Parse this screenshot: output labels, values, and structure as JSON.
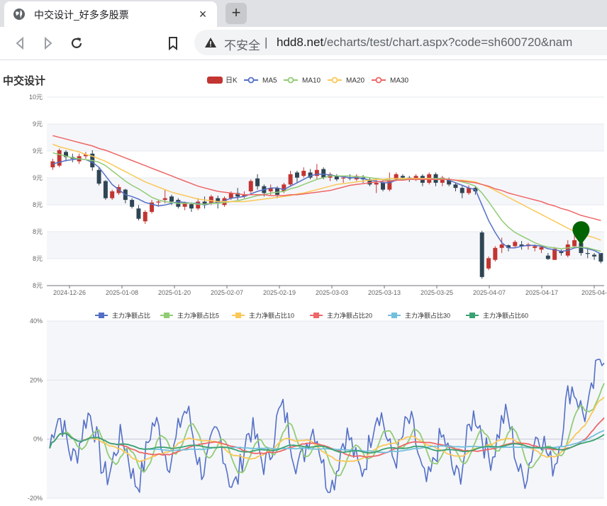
{
  "browser": {
    "tab_title": "中交设计_好多多股票",
    "close_icon": "×",
    "new_tab_icon": "+",
    "insecure_label": "不安全",
    "separator": "|",
    "url_host": "hdd8.net",
    "url_path": "/echarts/test/chart.aspx?code=sh600720&nam"
  },
  "chart_title": "中交设计",
  "chart_data": [
    {
      "type": "candlestick",
      "legend": [
        "日K",
        "MA5",
        "MA10",
        "MA20",
        "MA30"
      ],
      "colors": {
        "up": "#c23531",
        "down": "#2f4554",
        "MA5": "#5470c6",
        "MA10": "#91cc75",
        "MA20": "#fac858",
        "MA30": "#ee6666"
      },
      "y_tick_labels": [
        "10元",
        "9元",
        "9元",
        "9元",
        "8元",
        "8元",
        "8元",
        "8元"
      ],
      "ylim": [
        7.8,
        10.0
      ],
      "x_tick_labels": [
        "2024-12-26",
        "2025-01-08",
        "2025-01-20",
        "2025-02-07",
        "2025-02-19",
        "2025-03-03",
        "2025-03-13",
        "2025-03-25",
        "2025-04-07",
        "2025-04-17",
        "2025-04-"
      ],
      "candles": [
        [
          9.18,
          9.25,
          9.28,
          9.15
        ],
        [
          9.2,
          9.38,
          9.4,
          9.18
        ],
        [
          9.36,
          9.3,
          9.38,
          9.25
        ],
        [
          9.3,
          9.28,
          9.34,
          9.24
        ],
        [
          9.25,
          9.31,
          9.34,
          9.22
        ],
        [
          9.31,
          9.33,
          9.36,
          9.28
        ],
        [
          9.34,
          9.18,
          9.38,
          9.14
        ],
        [
          9.15,
          8.99,
          9.18,
          8.97
        ],
        [
          9.02,
          8.82,
          9.03,
          8.8
        ],
        [
          8.82,
          8.9,
          8.92,
          8.8
        ],
        [
          8.88,
          8.95,
          8.98,
          8.86
        ],
        [
          8.92,
          8.8,
          8.93,
          8.76
        ],
        [
          8.8,
          8.72,
          8.82,
          8.7
        ],
        [
          8.7,
          8.58,
          8.74,
          8.56
        ],
        [
          8.55,
          8.66,
          8.68,
          8.52
        ],
        [
          8.66,
          8.77,
          8.8,
          8.64
        ],
        [
          8.77,
          8.78,
          8.8,
          8.72
        ],
        [
          8.8,
          8.82,
          8.92,
          8.76
        ],
        [
          8.84,
          8.78,
          8.86,
          8.74
        ],
        [
          8.8,
          8.72,
          8.82,
          8.7
        ],
        [
          8.72,
          8.76,
          8.78,
          8.68
        ],
        [
          8.75,
          8.7,
          8.77,
          8.66
        ],
        [
          8.7,
          8.78,
          8.82,
          8.68
        ],
        [
          8.78,
          8.74,
          8.84,
          8.7
        ],
        [
          8.76,
          8.84,
          8.86,
          8.74
        ],
        [
          8.82,
          8.76,
          8.85,
          8.7
        ],
        [
          8.74,
          8.82,
          8.84,
          8.72
        ],
        [
          8.82,
          8.88,
          8.9,
          8.8
        ],
        [
          8.88,
          8.84,
          8.94,
          8.8
        ],
        [
          8.84,
          8.86,
          8.9,
          8.82
        ],
        [
          8.9,
          9.02,
          9.04,
          8.88
        ],
        [
          9.05,
          8.96,
          9.1,
          8.92
        ],
        [
          8.96,
          8.88,
          8.98,
          8.84
        ],
        [
          8.9,
          8.94,
          8.98,
          8.86
        ],
        [
          8.94,
          8.86,
          8.96,
          8.82
        ],
        [
          8.9,
          8.98,
          9.0,
          8.88
        ],
        [
          8.98,
          9.1,
          9.14,
          8.96
        ],
        [
          9.12,
          9.06,
          9.14,
          9.0
        ],
        [
          9.08,
          9.14,
          9.18,
          9.06
        ],
        [
          9.12,
          9.06,
          9.16,
          9.04
        ],
        [
          9.08,
          9.15,
          9.22,
          9.04
        ],
        [
          9.16,
          9.06,
          9.18,
          9.04
        ],
        [
          9.06,
          9.1,
          9.12,
          9.02
        ],
        [
          9.08,
          9.04,
          9.1,
          9.02
        ],
        [
          9.05,
          9.06,
          9.08,
          9.0
        ],
        [
          9.06,
          9.05,
          9.1,
          9.03
        ],
        [
          9.04,
          9.08,
          9.1,
          9.02
        ],
        [
          9.06,
          9.04,
          9.09,
          9.0
        ],
        [
          9.04,
          8.98,
          9.06,
          8.96
        ],
        [
          8.98,
          9.0,
          9.04,
          8.88
        ],
        [
          9.0,
          8.92,
          9.03,
          8.9
        ],
        [
          8.92,
          9.03,
          9.12,
          8.9
        ],
        [
          9.04,
          9.1,
          9.12,
          9.02
        ],
        [
          9.08,
          9.06,
          9.1,
          9.04
        ],
        [
          9.06,
          9.04,
          9.08,
          9.01
        ],
        [
          9.04,
          9.08,
          9.1,
          9.02
        ],
        [
          9.08,
          9.0,
          9.1,
          8.96
        ],
        [
          9.0,
          9.1,
          9.12,
          8.98
        ],
        [
          9.1,
          9.0,
          9.12,
          8.96
        ],
        [
          9.0,
          9.06,
          9.08,
          8.96
        ],
        [
          9.04,
          8.98,
          9.06,
          8.96
        ],
        [
          8.98,
          8.94,
          9.0,
          8.9
        ],
        [
          8.94,
          8.88,
          8.96,
          8.82
        ],
        [
          8.88,
          8.94,
          8.97,
          8.86
        ],
        [
          8.94,
          8.9,
          8.96,
          8.86
        ],
        [
          8.42,
          7.9,
          8.44,
          7.88
        ],
        [
          8.0,
          8.12,
          8.14,
          7.98
        ],
        [
          8.1,
          8.24,
          8.26,
          8.08
        ],
        [
          8.24,
          8.28,
          8.36,
          8.18
        ],
        [
          8.27,
          8.24,
          8.28,
          8.2
        ],
        [
          8.26,
          8.31,
          8.33,
          8.24
        ],
        [
          8.28,
          8.26,
          8.32,
          8.22
        ],
        [
          8.26,
          8.28,
          8.3,
          8.22
        ],
        [
          8.24,
          8.26,
          8.28,
          8.2
        ],
        [
          8.22,
          8.25,
          8.26,
          8.18
        ],
        [
          8.15,
          8.11,
          8.18,
          8.1
        ],
        [
          8.1,
          8.23,
          8.25,
          8.1
        ],
        [
          8.2,
          8.18,
          8.22,
          8.15
        ],
        [
          8.15,
          8.28,
          8.33,
          8.13
        ],
        [
          8.26,
          8.33,
          8.42,
          8.25
        ],
        [
          8.3,
          8.18,
          8.32,
          8.15
        ],
        [
          8.18,
          8.17,
          8.24,
          8.12
        ],
        [
          8.16,
          8.14,
          8.18,
          8.1
        ],
        [
          8.18,
          8.08,
          8.18,
          8.06
        ]
      ],
      "ma5": [
        9.22,
        9.24,
        9.26,
        9.27,
        9.28,
        9.27,
        9.24,
        9.18,
        9.08,
        8.98,
        8.92,
        8.86,
        8.84,
        8.81,
        8.77,
        8.75,
        8.73,
        8.74,
        8.76,
        8.78,
        8.77,
        8.76,
        8.76,
        8.74,
        8.76,
        8.77,
        8.79,
        8.82,
        8.83,
        8.84,
        8.87,
        8.9,
        8.92,
        8.94,
        8.94,
        8.92,
        8.96,
        9.0,
        9.04,
        9.08,
        9.1,
        9.1,
        9.09,
        9.08,
        9.07,
        9.06,
        9.06,
        9.05,
        9.03,
        9.02,
        9.0,
        9.0,
        9.03,
        9.04,
        9.05,
        9.05,
        9.05,
        9.05,
        9.05,
        9.05,
        9.03,
        9.0,
        8.97,
        8.94,
        8.92,
        8.74,
        8.56,
        8.42,
        8.3,
        8.24,
        8.24,
        8.26,
        8.27,
        8.27,
        8.26,
        8.23,
        8.22,
        8.2,
        8.21,
        8.24,
        8.25,
        8.23,
        8.21,
        8.17
      ],
      "ma10": [
        9.35,
        9.33,
        9.31,
        9.29,
        9.28,
        9.27,
        9.26,
        9.24,
        9.2,
        9.14,
        9.08,
        9.02,
        8.97,
        8.93,
        8.88,
        8.83,
        8.8,
        8.78,
        8.77,
        8.76,
        8.76,
        8.76,
        8.75,
        8.75,
        8.76,
        8.76,
        8.77,
        8.78,
        8.79,
        8.81,
        8.83,
        8.85,
        8.86,
        8.88,
        8.89,
        8.9,
        8.93,
        8.95,
        8.98,
        9.01,
        9.04,
        9.06,
        9.08,
        9.08,
        9.08,
        9.08,
        9.07,
        9.07,
        9.06,
        9.05,
        9.04,
        9.03,
        9.03,
        9.04,
        9.04,
        9.04,
        9.04,
        9.05,
        9.05,
        9.05,
        9.04,
        9.03,
        9.01,
        8.99,
        8.96,
        8.88,
        8.78,
        8.67,
        8.56,
        8.48,
        8.42,
        8.38,
        8.34,
        8.3,
        8.27,
        8.25,
        8.24,
        8.23,
        8.24,
        8.25,
        8.25,
        8.24,
        8.22,
        8.2
      ],
      "ma20": [
        9.45,
        9.42,
        9.4,
        9.38,
        9.36,
        9.33,
        9.31,
        9.28,
        9.25,
        9.21,
        9.17,
        9.13,
        9.09,
        9.05,
        9.01,
        8.98,
        8.95,
        8.92,
        8.89,
        8.87,
        8.85,
        8.83,
        8.81,
        8.8,
        8.79,
        8.78,
        8.78,
        8.78,
        8.78,
        8.78,
        8.79,
        8.8,
        8.81,
        8.82,
        8.83,
        8.84,
        8.85,
        8.87,
        8.88,
        8.9,
        8.92,
        8.94,
        8.96,
        8.98,
        8.99,
        9.0,
        9.01,
        9.02,
        9.03,
        9.04,
        9.04,
        9.05,
        9.05,
        9.05,
        9.05,
        9.05,
        9.05,
        9.05,
        9.04,
        9.04,
        9.04,
        9.03,
        9.03,
        9.02,
        9.01,
        8.98,
        8.95,
        8.91,
        8.87,
        8.83,
        8.79,
        8.75,
        8.71,
        8.67,
        8.63,
        8.59,
        8.55,
        8.51,
        8.47,
        8.43,
        8.4,
        8.38,
        8.36,
        8.33
      ],
      "ma30": [
        9.55,
        9.53,
        9.51,
        9.49,
        9.47,
        9.45,
        9.43,
        9.4,
        9.38,
        9.35,
        9.32,
        9.29,
        9.26,
        9.23,
        9.2,
        9.17,
        9.14,
        9.11,
        9.08,
        9.05,
        9.02,
        8.99,
        8.96,
        8.94,
        8.92,
        8.9,
        8.89,
        8.88,
        8.87,
        8.86,
        8.86,
        8.86,
        8.86,
        8.85,
        8.85,
        8.85,
        8.86,
        8.86,
        8.87,
        8.88,
        8.89,
        8.9,
        8.91,
        8.93,
        8.95,
        8.97,
        8.98,
        8.99,
        9.0,
        9.01,
        9.02,
        9.02,
        9.03,
        9.03,
        9.04,
        9.04,
        9.04,
        9.04,
        9.04,
        9.04,
        9.04,
        9.03,
        9.02,
        9.01,
        9.0,
        8.98,
        8.96,
        8.93,
        8.91,
        8.88,
        8.86,
        8.84,
        8.82,
        8.8,
        8.78,
        8.75,
        8.73,
        8.7,
        8.68,
        8.65,
        8.62,
        8.6,
        8.58,
        8.56
      ],
      "marker_color": "#006400"
    },
    {
      "type": "line",
      "legend": [
        "主力净额占比",
        "主力净额占比5",
        "主力净额占比10",
        "主力净额占比20",
        "主力净额占比30",
        "主力净额占比60"
      ],
      "colors": [
        "#5470c6",
        "#91cc75",
        "#fac858",
        "#ee6666",
        "#73c0de",
        "#3ba272"
      ],
      "y_tick_labels": [
        "40%",
        "20%",
        "0%",
        "-20%"
      ],
      "ylim": [
        -20,
        40
      ]
    }
  ]
}
